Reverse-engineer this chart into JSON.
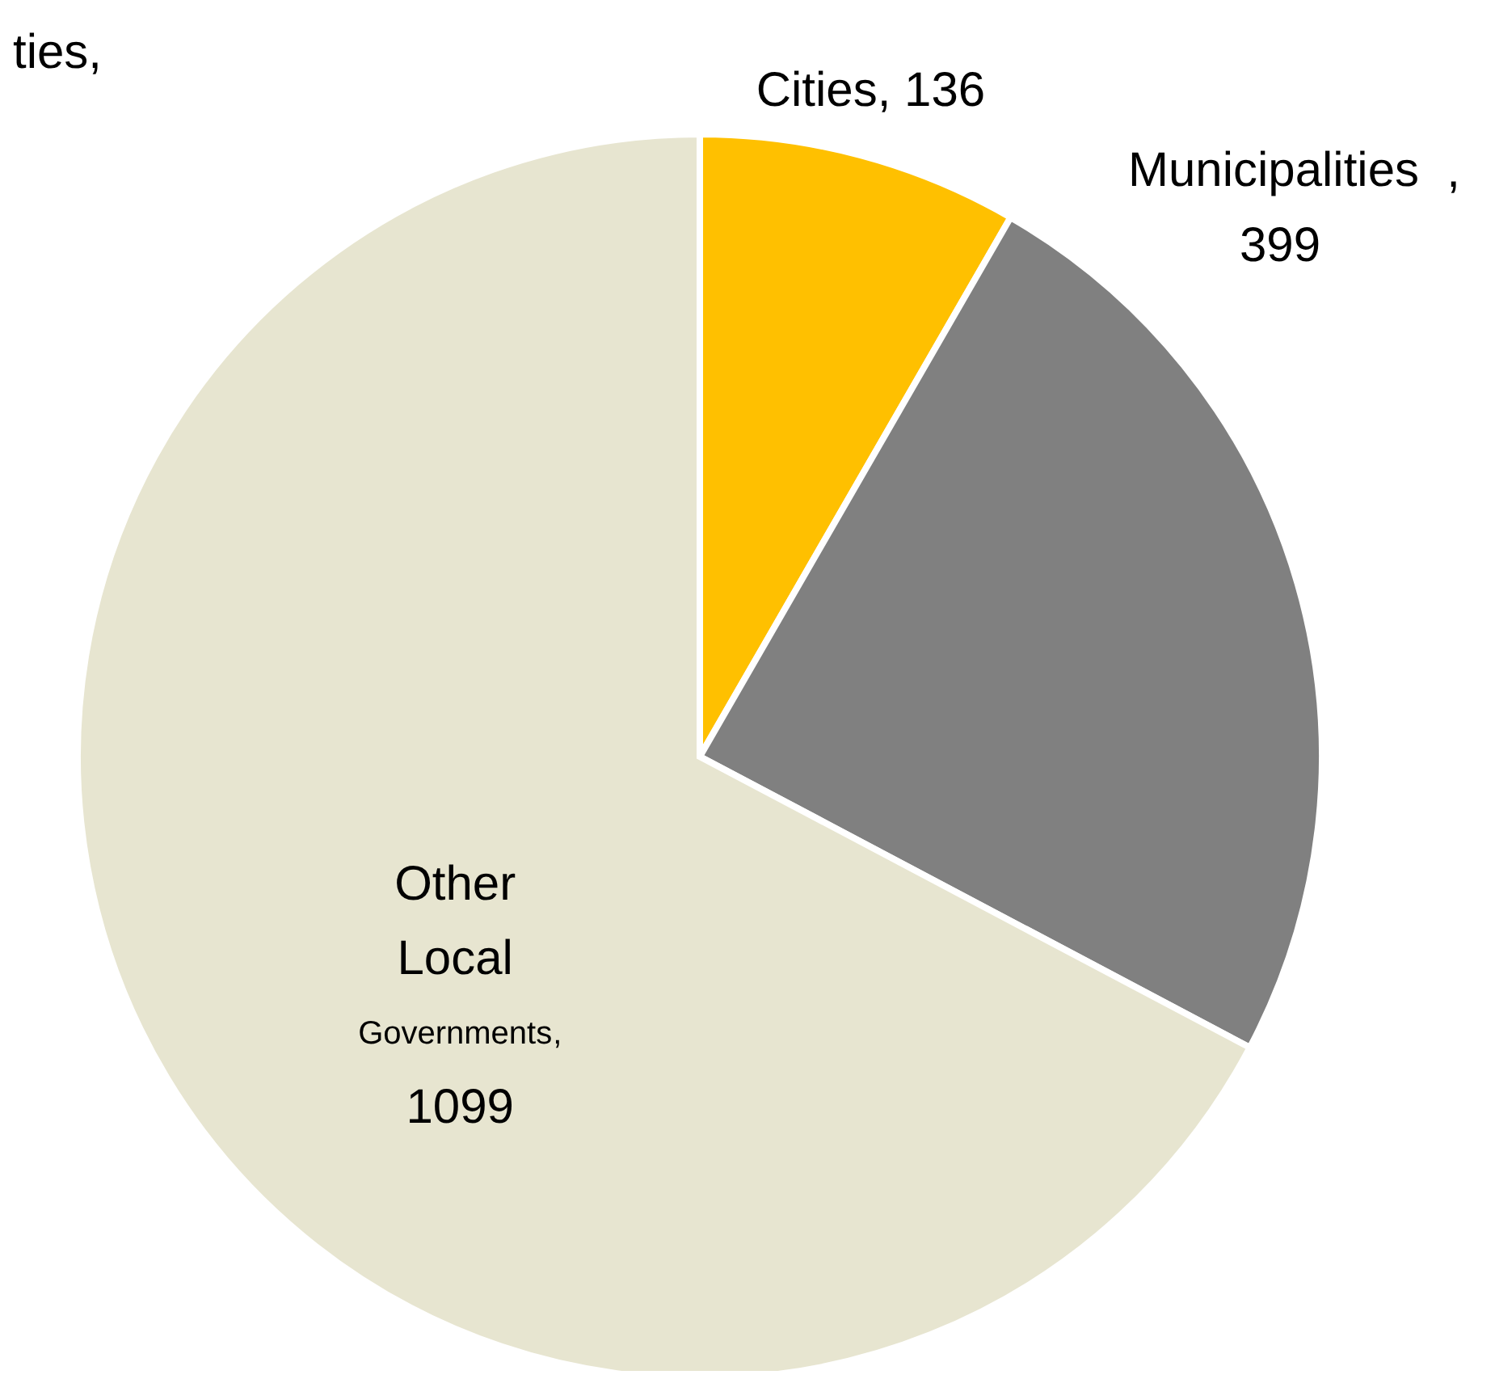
{
  "chart_data": {
    "type": "pie",
    "categories": [
      "Cities",
      "Municipalities",
      "Other Local Governments"
    ],
    "values": [
      136,
      399,
      1099
    ],
    "colors": [
      "#ffc000",
      "#808080",
      "#e7e5d0"
    ],
    "value_labels": [
      ", 136",
      ", 399",
      ", 1099"
    ],
    "legend": false,
    "annotations": [
      "ties,"
    ]
  }
}
